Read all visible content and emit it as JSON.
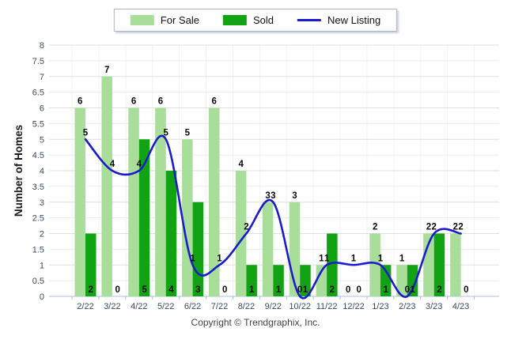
{
  "legend": {
    "items": [
      {
        "label": "For Sale",
        "swatch": "bar",
        "color": "#A8DE9A"
      },
      {
        "label": "Sold",
        "swatch": "bar",
        "color": "#12A315"
      },
      {
        "label": "New Listing",
        "swatch": "line",
        "color": "#1B1BCE"
      }
    ]
  },
  "chart_data": {
    "type": "bar",
    "title": "",
    "categories": [
      "2/22",
      "3/22",
      "4/22",
      "5/22",
      "6/22",
      "7/22",
      "8/22",
      "9/22",
      "10/22",
      "11/22",
      "12/22",
      "1/23",
      "2/23",
      "3/23",
      "4/23"
    ],
    "series": [
      {
        "name": "For Sale",
        "type": "bar",
        "color": "#A8DE9A",
        "values": [
          6,
          7,
          6,
          6,
          5,
          6,
          4,
          3,
          3,
          1,
          0,
          2,
          1,
          2,
          2
        ]
      },
      {
        "name": "Sold",
        "type": "bar",
        "color": "#12A315",
        "values": [
          2,
          0,
          5,
          4,
          3,
          0,
          1,
          1,
          1,
          2,
          0,
          1,
          1,
          2,
          0
        ]
      },
      {
        "name": "New Listing",
        "type": "line",
        "color": "#1B1BCE",
        "values": [
          5,
          4,
          4,
          5,
          1,
          1,
          2,
          3,
          0,
          1,
          1,
          1,
          0,
          2,
          2
        ]
      }
    ],
    "ylabel": "Number of Homes",
    "xlabel": "",
    "ylim": [
      0,
      8
    ],
    "ytick_step": 0.5,
    "grid": true,
    "legend_position": "top-center",
    "value_labels": true
  },
  "footer": {
    "copyright": "Copyright © Trendgraphix, Inc."
  },
  "colors": {
    "axis": "#A9C0D9",
    "grid_major": "#e0e0e0",
    "grid_minor": "#ececec",
    "grid_vertical": "#f3f3f3",
    "tick_text": "#3A4A63",
    "value_text": "#0a0a0a",
    "ylabel_text": "#1a1a1a"
  }
}
